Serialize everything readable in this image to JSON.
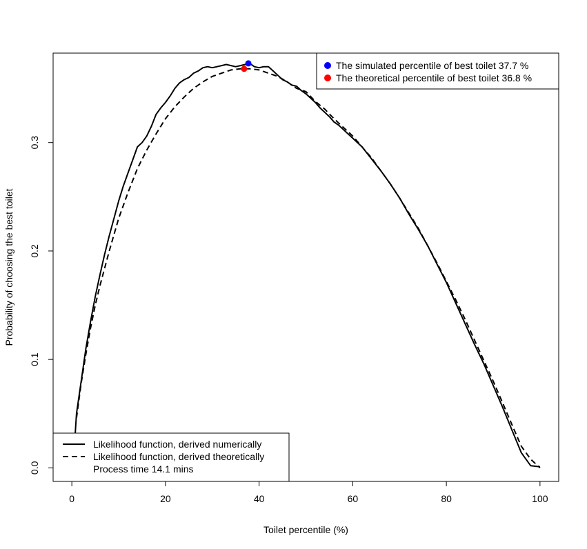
{
  "chart_data": {
    "type": "line",
    "title": "",
    "xlabel": "Toilet percentile (%)",
    "ylabel": "Probability of choosing the best toilet",
    "xlim": [
      -4,
      104
    ],
    "ylim": [
      -0.0125,
      0.3825
    ],
    "xticks": [
      0,
      20,
      40,
      60,
      80,
      100
    ],
    "xtick_labels": [
      "0",
      "20",
      "40",
      "60",
      "80",
      "100"
    ],
    "yticks": [
      0.0,
      0.1,
      0.2,
      0.3
    ],
    "ytick_labels": [
      "0.0",
      "0.1",
      "0.2",
      "0.3"
    ],
    "grid": false,
    "series": [
      {
        "name": "Likelihood function, derived numerically",
        "style": "solid",
        "color": "#000000",
        "x": [
          0.7,
          1,
          2,
          3,
          4,
          5,
          6,
          7,
          8,
          9,
          10,
          11,
          12,
          13,
          14,
          15,
          16,
          17,
          18,
          19,
          20,
          21,
          22,
          23,
          24,
          25,
          26,
          27,
          28,
          29,
          30,
          31,
          32,
          33,
          34,
          35,
          36,
          37,
          38,
          39,
          40,
          41,
          42,
          43,
          44,
          45,
          46,
          47,
          48,
          49,
          50,
          51,
          52,
          53,
          54,
          55,
          56,
          57,
          58,
          59,
          60,
          62,
          64,
          66,
          68,
          70,
          72,
          74,
          76,
          78,
          80,
          82,
          84,
          86,
          88,
          90,
          92,
          94,
          96,
          98,
          99,
          100
        ],
        "y": [
          0.03,
          0.05,
          0.08,
          0.11,
          0.135,
          0.158,
          0.178,
          0.197,
          0.214,
          0.23,
          0.246,
          0.26,
          0.272,
          0.284,
          0.296,
          0.3,
          0.306,
          0.315,
          0.326,
          0.332,
          0.337,
          0.343,
          0.35,
          0.355,
          0.358,
          0.36,
          0.364,
          0.366,
          0.369,
          0.37,
          0.369,
          0.37,
          0.371,
          0.372,
          0.371,
          0.37,
          0.371,
          0.372,
          0.373,
          0.37,
          0.369,
          0.37,
          0.37,
          0.366,
          0.362,
          0.358,
          0.356,
          0.353,
          0.352,
          0.348,
          0.345,
          0.341,
          0.337,
          0.332,
          0.328,
          0.324,
          0.319,
          0.316,
          0.312,
          0.308,
          0.304,
          0.296,
          0.285,
          0.274,
          0.262,
          0.249,
          0.234,
          0.22,
          0.205,
          0.188,
          0.171,
          0.152,
          0.133,
          0.114,
          0.096,
          0.076,
          0.056,
          0.035,
          0.014,
          0.002,
          0.0015,
          0.001
        ],
        "marker_x": 37.7,
        "marker_y": 0.373,
        "marker_color": "#0000FF",
        "marker_label": "The simulated percentile of best toilet 37.7 %"
      },
      {
        "name": "Likelihood function, derived theoretically",
        "style": "dashed",
        "color": "#000000",
        "x": [
          1,
          2,
          3,
          4,
          5,
          6,
          8,
          10,
          12,
          14,
          16,
          18,
          20,
          22,
          24,
          26,
          28,
          30,
          32,
          34,
          36,
          36.8,
          38,
          40,
          42,
          44,
          46,
          48,
          50,
          52,
          54,
          56,
          58,
          60,
          62,
          64,
          66,
          68,
          70,
          72,
          74,
          76,
          78,
          80,
          82,
          84,
          86,
          88,
          90,
          92,
          94,
          96,
          98,
          100
        ],
        "y": [
          0.046,
          0.078,
          0.105,
          0.129,
          0.15,
          0.168,
          0.2,
          0.23,
          0.254,
          0.276,
          0.293,
          0.308,
          0.322,
          0.333,
          0.342,
          0.35,
          0.356,
          0.361,
          0.364,
          0.367,
          0.368,
          0.368,
          0.368,
          0.367,
          0.364,
          0.361,
          0.356,
          0.35,
          0.347,
          0.338,
          0.331,
          0.322,
          0.314,
          0.306,
          0.296,
          0.286,
          0.274,
          0.262,
          0.249,
          0.235,
          0.221,
          0.205,
          0.189,
          0.172,
          0.155,
          0.137,
          0.118,
          0.099,
          0.08,
          0.06,
          0.04,
          0.02,
          0.008,
          0.0
        ]
      }
    ],
    "points": [
      {
        "label": "The simulated percentile of best toilet 37.7 %",
        "x": 37.7,
        "y": 0.373,
        "color": "#0000FF"
      },
      {
        "label": "The theoretical percentile of best toilet 36.8 %",
        "x": 36.8,
        "y": 0.368,
        "color": "#FF0000"
      }
    ],
    "legends": [
      {
        "placement": "top-right",
        "entries": [
          {
            "label": "The simulated percentile of best toilet 37.7 %",
            "symbol": "point",
            "color": "#0000FF"
          },
          {
            "label": "The theoretical percentile of best toilet 36.8 %",
            "symbol": "point",
            "color": "#FF0000"
          }
        ]
      },
      {
        "placement": "bottom-left",
        "entries": [
          {
            "label": "Likelihood function, derived numerically",
            "symbol": "solid-line",
            "color": "#000000"
          },
          {
            "label": "Likelihood function, derived theoretically",
            "symbol": "dashed-line",
            "color": "#000000"
          },
          {
            "label": "Process time 14.1 mins",
            "symbol": "none",
            "color": "#000000"
          }
        ]
      }
    ]
  }
}
